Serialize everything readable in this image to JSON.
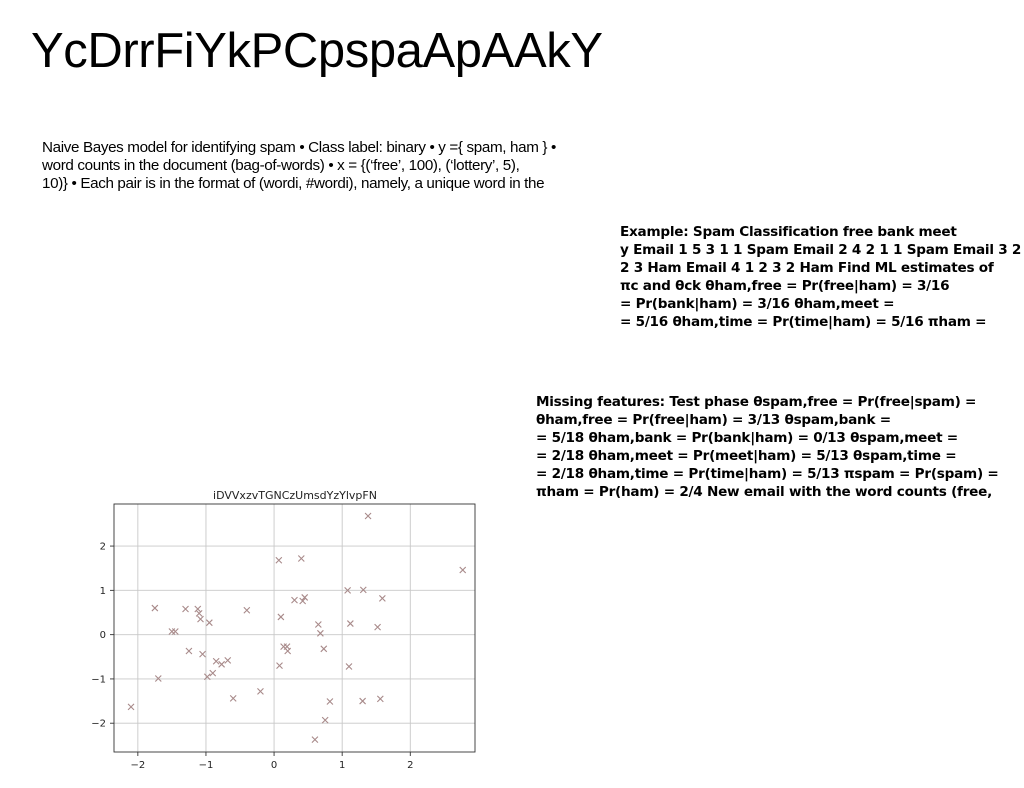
{
  "page": {
    "title": "YcDrrFiYkPCpspaApAAkY",
    "body_lines": [
      "Naive Bayes model for identifying spam • Class label: binary • y ={ spam, ham } •",
      "word counts in the document (bag-of-words) • x = {(‘free’, 100), (‘lottery’, 5),",
      "10)} • Each pair is in the format of (wordi, #wordi), namely, a unique word in the"
    ],
    "example_lines": [
      "Example: Spam Classification free bank meet",
      "y Email 1 5 3 1 1 Spam Email 2 4 2 1 1 Spam Email 3 2",
      "2 3 Ham Email 4 1 2 3 2 Ham Find ML estimates of",
      "πc and θck θham,free = Pr(free|ham) = 3/16",
      "= Pr(bank|ham) = 3/16 θham,meet =",
      "= 5/16 θham,time = Pr(time|ham) = 5/16 πham ="
    ],
    "missing_lines": [
      "Missing features: Test phase θspam,free = Pr(free|spam) =",
      "θham,free = Pr(free|ham) = 3/13 θspam,bank =",
      "= 5/18 θham,bank = Pr(bank|ham) = 0/13 θspam,meet =",
      "= 2/18 θham,meet = Pr(meet|ham) = 5/13 θspam,time =",
      "= 2/18 θham,time = Pr(time|ham) = 5/13 πspam = Pr(spam) =",
      "πham = Pr(ham) = 2/4 New email with the word counts (free,"
    ]
  },
  "chart_data": {
    "type": "scatter",
    "title": "iDVVxzvTGNCzUmsdYzYlvpFN",
    "marker": "x",
    "color": "#a88a8a",
    "grid": true,
    "xlim": [
      -2.35,
      2.95
    ],
    "ylim": [
      -2.65,
      2.95
    ],
    "xticks": [
      -2,
      -1,
      0,
      1,
      2
    ],
    "yticks": [
      -2,
      -1,
      0,
      1,
      2
    ],
    "xtick_labels": [
      "−2",
      "−1",
      "0",
      "1",
      "2"
    ],
    "ytick_labels": [
      "−2",
      "−1",
      "0",
      "1",
      "2"
    ],
    "x": [
      -2.1,
      -1.75,
      -1.7,
      -1.5,
      -1.45,
      -1.3,
      -1.25,
      -1.12,
      -1.1,
      -1.08,
      -1.05,
      -0.98,
      -0.95,
      -0.9,
      -0.85,
      -0.77,
      -0.68,
      -0.6,
      -0.4,
      -0.2,
      0.07,
      0.08,
      0.1,
      0.14,
      0.19,
      0.2,
      0.3,
      0.4,
      0.42,
      0.45,
      0.6,
      0.65,
      0.68,
      0.73,
      0.75,
      0.82,
      1.08,
      1.1,
      1.12,
      1.3,
      1.31,
      1.38,
      1.52,
      1.56,
      1.59,
      2.77
    ],
    "y": [
      -1.63,
      0.6,
      -0.99,
      0.07,
      0.07,
      0.58,
      -0.37,
      0.58,
      0.48,
      0.35,
      -0.44,
      -0.95,
      0.27,
      -0.87,
      -0.6,
      -0.67,
      -0.58,
      -1.44,
      0.55,
      -1.28,
      1.68,
      -0.7,
      0.4,
      -0.27,
      -0.27,
      -0.37,
      0.78,
      1.72,
      0.76,
      0.84,
      -2.37,
      0.23,
      0.03,
      -0.32,
      -1.93,
      -1.51,
      1.0,
      -0.72,
      0.25,
      -1.5,
      1.01,
      2.68,
      0.17,
      -1.45,
      0.82,
      1.46
    ]
  }
}
